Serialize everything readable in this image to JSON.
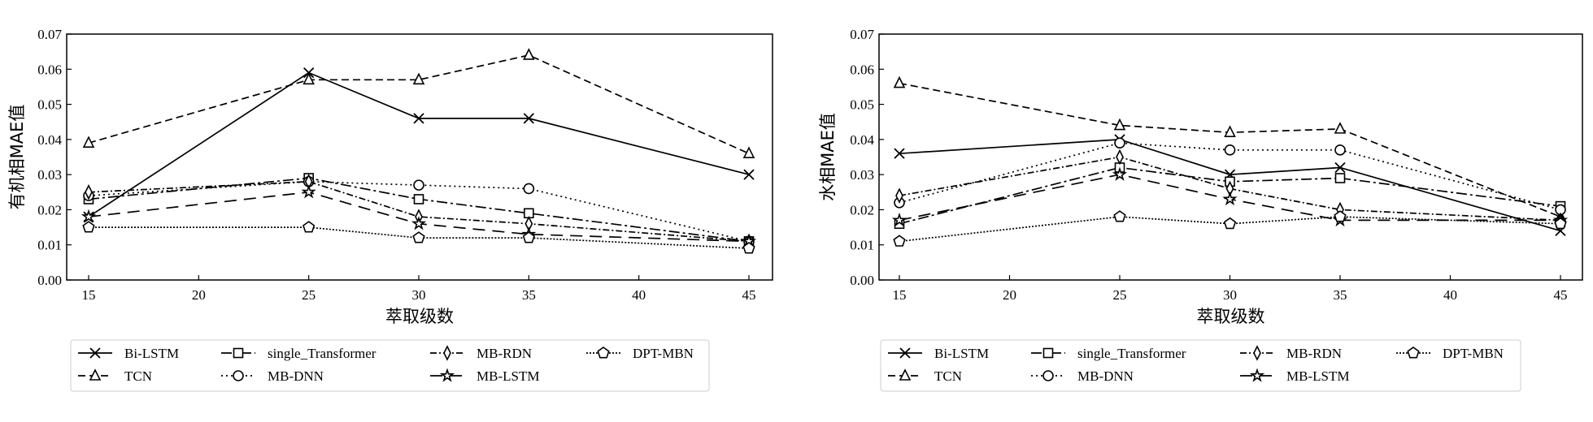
{
  "chart_data": [
    {
      "type": "line",
      "title": "",
      "xlabel": "萃取级数",
      "ylabel": "有机相MAE值",
      "x": [
        15,
        25,
        30,
        35,
        45
      ],
      "xticks": [
        "15",
        "20",
        "25",
        "30",
        "35",
        "40",
        "45"
      ],
      "yticks": [
        "0.00",
        "0.01",
        "0.02",
        "0.03",
        "0.04",
        "0.05",
        "0.06",
        "0.07"
      ],
      "xlim": [
        14,
        46
      ],
      "ylim": [
        0,
        0.07
      ],
      "grid": false,
      "legend_placement": "bottom",
      "series": [
        {
          "name": "Bi-LSTM",
          "values": [
            0.018,
            0.059,
            0.046,
            0.046,
            0.03
          ]
        },
        {
          "name": "TCN",
          "values": [
            0.039,
            0.057,
            0.057,
            0.064,
            0.036
          ]
        },
        {
          "name": "single_Transformer",
          "values": [
            0.023,
            0.029,
            0.023,
            0.019,
            0.011
          ]
        },
        {
          "name": "MB-DNN",
          "values": [
            0.024,
            0.028,
            0.027,
            0.026,
            0.011
          ]
        },
        {
          "name": "MB-RDN",
          "values": [
            0.025,
            0.028,
            0.018,
            0.016,
            0.011
          ]
        },
        {
          "name": "MB-LSTM",
          "values": [
            0.018,
            0.025,
            0.016,
            0.013,
            0.011
          ]
        },
        {
          "name": "DPT-MBN",
          "values": [
            0.015,
            0.015,
            0.012,
            0.012,
            0.009
          ]
        }
      ]
    },
    {
      "type": "line",
      "title": "",
      "xlabel": "萃取级数",
      "ylabel": "水相MAE值",
      "x": [
        15,
        25,
        30,
        35,
        45
      ],
      "xticks": [
        "15",
        "20",
        "25",
        "30",
        "35",
        "40",
        "45"
      ],
      "yticks": [
        "0.00",
        "0.01",
        "0.02",
        "0.03",
        "0.04",
        "0.05",
        "0.06",
        "0.07"
      ],
      "xlim": [
        14,
        46
      ],
      "ylim": [
        0,
        0.07
      ],
      "grid": false,
      "legend_placement": "bottom",
      "series": [
        {
          "name": "Bi-LSTM",
          "values": [
            0.036,
            0.04,
            0.03,
            0.032,
            0.014
          ]
        },
        {
          "name": "TCN",
          "values": [
            0.056,
            0.044,
            0.042,
            0.043,
            0.018
          ]
        },
        {
          "name": "single_Transformer",
          "values": [
            0.016,
            0.032,
            0.028,
            0.029,
            0.021
          ]
        },
        {
          "name": "MB-DNN",
          "values": [
            0.022,
            0.039,
            0.037,
            0.037,
            0.02
          ]
        },
        {
          "name": "MB-RDN",
          "values": [
            0.024,
            0.035,
            0.026,
            0.02,
            0.017
          ]
        },
        {
          "name": "MB-LSTM",
          "values": [
            0.017,
            0.03,
            0.023,
            0.017,
            0.017
          ]
        },
        {
          "name": "DPT-MBN",
          "values": [
            0.011,
            0.018,
            0.016,
            0.018,
            0.016
          ]
        }
      ]
    }
  ],
  "styles": {
    "Bi-LSTM": {
      "marker": "x-icon",
      "dash": "solid"
    },
    "TCN": {
      "marker": "triangle-icon",
      "dash": "dashed"
    },
    "single_Transformer": {
      "marker": "square-icon",
      "dash": "dash-dot-long"
    },
    "MB-DNN": {
      "marker": "circle-icon",
      "dash": "dotted"
    },
    "MB-RDN": {
      "marker": "diamond-icon",
      "dash": "dash-dot"
    },
    "MB-LSTM": {
      "marker": "star-icon",
      "dash": "long-dash"
    },
    "DPT-MBN": {
      "marker": "pentagon-icon",
      "dash": "dense-dot"
    }
  },
  "line_color": "#000000"
}
